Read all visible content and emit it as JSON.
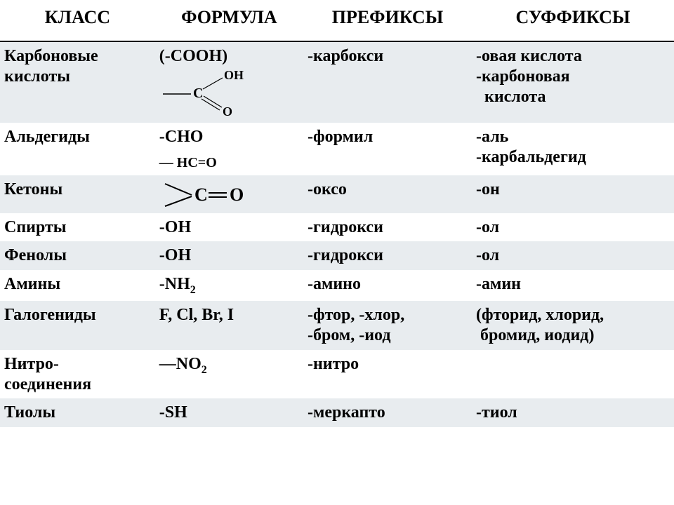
{
  "headers": [
    "КЛАСС",
    "ФОРМУЛА",
    "ПРЕФИКСЫ",
    "СУФФИКСЫ"
  ],
  "rows": [
    {
      "klass": "Карбоновые кислоты",
      "formula": "(-COOH)",
      "formula_svg": "cooh",
      "prefix": "-карбокси",
      "suffix": "-овая кислота<br>-карбоновая<br>&nbsp;&nbsp;кислота"
    },
    {
      "klass": "Альдегиды",
      "formula": "-CHO",
      "formula_extra": "— HC=O",
      "prefix": "-формил",
      "suffix": "-аль<br>-карбальдегид"
    },
    {
      "klass": "Кетоны",
      "formula": "",
      "formula_svg": "co",
      "prefix": "-оксо",
      "suffix": "-он"
    },
    {
      "klass": "Спирты",
      "formula": "-OH",
      "prefix": "-гидрокси",
      "suffix": "-ол"
    },
    {
      "klass": "Фенолы",
      "formula": "-OH",
      "prefix": "-гидрокси",
      "suffix": "-ол"
    },
    {
      "klass": "Амины",
      "formula": "-NH<sub>2</sub>",
      "prefix": "-амино",
      "suffix": "-амин"
    },
    {
      "klass": "Галогениды",
      "formula": "F, Cl, Br, I",
      "prefix": "-фтор, -хлор,<br>-бром, -иод",
      "suffix": "(фторид, хлорид,<br>&nbsp;бромид, иодид)"
    },
    {
      "klass": "Нитро-<br>соединения",
      "formula": "—NO<sub>2</sub>",
      "prefix": "-нитро",
      "suffix": ""
    },
    {
      "klass": "Тиолы",
      "formula": "-SH",
      "prefix": "-меркапто",
      "suffix": "-тиол"
    }
  ],
  "colors": {
    "stripe": "#e8ecef",
    "text": "#000000",
    "bg": "#ffffff"
  }
}
